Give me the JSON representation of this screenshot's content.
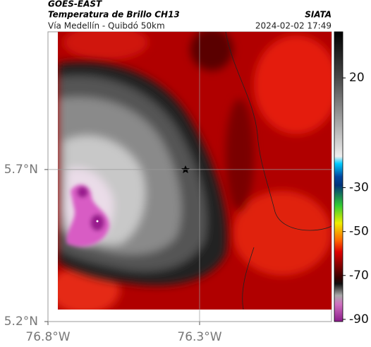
{
  "header": {
    "title": "GOES-EAST",
    "subtitle": "Temperatura de Brillo CH13",
    "source": "SIATA",
    "route": "Vía Medellín - Quibdó 50km",
    "timestamp": "2024-02-02 17:49"
  },
  "map": {
    "xlim": [
      -76.8,
      -75.865
    ],
    "ylim": [
      5.2,
      6.153
    ],
    "xticks": [
      {
        "value": -76.8,
        "label": "76.8°W"
      },
      {
        "value": -76.3,
        "label": "76.3°W"
      }
    ],
    "yticks": [
      {
        "value": 5.2,
        "label": "5.2°N"
      },
      {
        "value": 5.7,
        "label": "5.7°N"
      }
    ]
  },
  "colorbar": {
    "lim": [
      -91,
      41
    ],
    "ticks": [
      20,
      -30,
      -50,
      -70,
      -90
    ]
  }
}
